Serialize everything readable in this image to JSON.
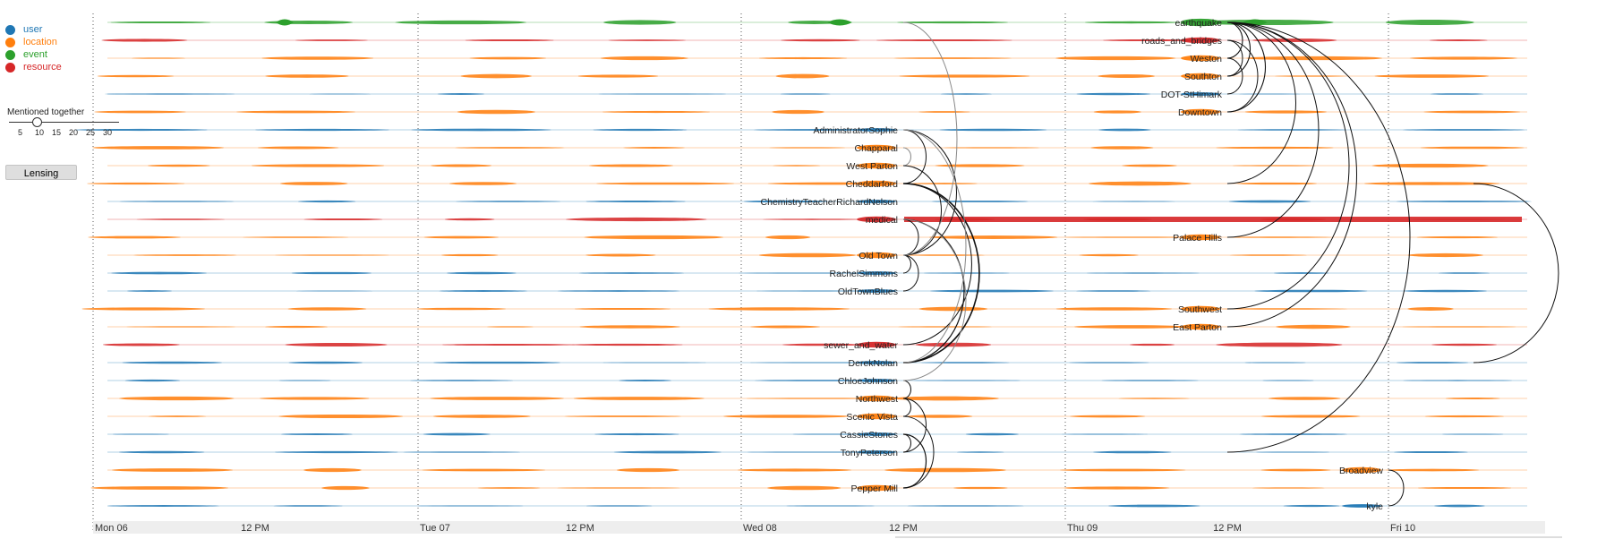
{
  "legend": [
    {
      "label": "user",
      "color": "#1f77b4"
    },
    {
      "label": "location",
      "color": "#ff7f0e"
    },
    {
      "label": "event",
      "color": "#2ca02c"
    },
    {
      "label": "resource",
      "color": "#d62728"
    }
  ],
  "slider": {
    "title": "Mentioned together",
    "ticks": [
      "5",
      "10",
      "15",
      "20",
      "25",
      "30"
    ],
    "value": 10
  },
  "lensing_label": "Lensing",
  "axis": {
    "days": [
      "Mon 06",
      "Tue 07",
      "Wed 08",
      "Thu 09",
      "Fri 10"
    ],
    "noon_label": "12 PM"
  },
  "tracks": [
    {
      "name": "earthquake",
      "type": "event",
      "anchor": "Thu 09 12 PM"
    },
    {
      "name": "roads_and_bridges",
      "type": "resource",
      "anchor": "Thu 09 12 PM"
    },
    {
      "name": "Weston",
      "type": "location",
      "anchor": "Thu 09 12 PM"
    },
    {
      "name": "Southton",
      "type": "location",
      "anchor": "Thu 09 12 PM"
    },
    {
      "name": "DOT-StHimark",
      "type": "user",
      "anchor": "Thu 09 12 PM"
    },
    {
      "name": "Downtown",
      "type": "location",
      "anchor": "Thu 09 12 PM"
    },
    {
      "name": "AdministratorSophie",
      "type": "user",
      "anchor": "Wed 08 12 PM"
    },
    {
      "name": "Chapparal",
      "type": "location",
      "anchor": "Wed 08 12 PM"
    },
    {
      "name": "West Parton",
      "type": "location",
      "anchor": "Wed 08 12 PM"
    },
    {
      "name": "Cheddarford",
      "type": "location",
      "anchor": "Wed 08 12 PM"
    },
    {
      "name": "ChemistryTeacherRichardNelson",
      "type": "user",
      "anchor": "Wed 08 12 PM"
    },
    {
      "name": "medical",
      "type": "resource",
      "anchor": "Wed 08 12 PM"
    },
    {
      "name": "Palace Hills",
      "type": "location",
      "anchor": "Thu 09 12 PM"
    },
    {
      "name": "Old Town",
      "type": "location",
      "anchor": "Wed 08 12 PM"
    },
    {
      "name": "RachelSimmons",
      "type": "user",
      "anchor": "Wed 08 12 PM"
    },
    {
      "name": "OldTownBlues",
      "type": "user",
      "anchor": "Wed 08 12 PM"
    },
    {
      "name": "Southwest",
      "type": "location",
      "anchor": "Thu 09 12 PM"
    },
    {
      "name": "East Parton",
      "type": "location",
      "anchor": "Thu 09 12 PM"
    },
    {
      "name": "sewer_and_water",
      "type": "resource",
      "anchor": "Wed 08 12 PM"
    },
    {
      "name": "DerekNolan",
      "type": "user",
      "anchor": "Wed 08 12 PM"
    },
    {
      "name": "ChloeJohnson",
      "type": "user",
      "anchor": "Wed 08 12 PM"
    },
    {
      "name": "Northwest",
      "type": "location",
      "anchor": "Wed 08 12 PM"
    },
    {
      "name": "Scenic Vista",
      "type": "location",
      "anchor": "Wed 08 12 PM"
    },
    {
      "name": "CassieStones",
      "type": "user",
      "anchor": "Wed 08 12 PM"
    },
    {
      "name": "TonyPeterson",
      "type": "user",
      "anchor": "Wed 08 12 PM"
    },
    {
      "name": "Broadview",
      "type": "location",
      "anchor": "Fri 10"
    },
    {
      "name": "Pepper Mill",
      "type": "location",
      "anchor": "Wed 08 12 PM"
    },
    {
      "name": "kyle",
      "type": "user",
      "anchor": "Fri 10"
    }
  ]
}
